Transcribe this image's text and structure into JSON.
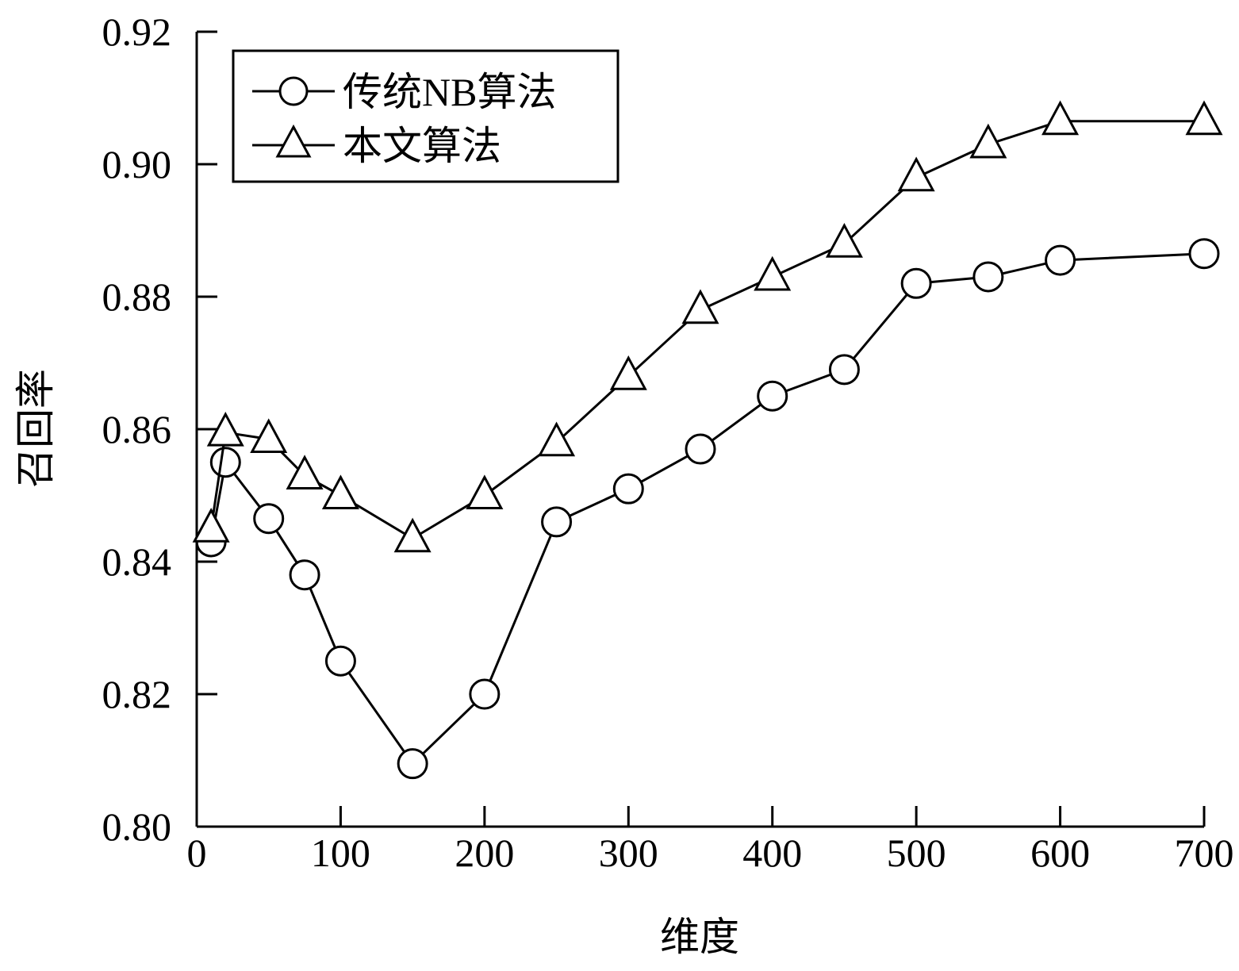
{
  "chart_data": {
    "type": "line",
    "title": "",
    "xlabel": "维度",
    "ylabel": "召回率",
    "xlim": [
      0,
      700
    ],
    "ylim": [
      0.8,
      0.92
    ],
    "xticks": [
      0,
      100,
      200,
      300,
      400,
      500,
      600,
      700
    ],
    "yticks": [
      0.8,
      0.82,
      0.84,
      0.86,
      0.88,
      0.9,
      0.92
    ],
    "xtick_labels": [
      "0",
      "100",
      "200",
      "300",
      "400",
      "500",
      "600",
      "700"
    ],
    "ytick_labels": [
      "0.80",
      "0.82",
      "0.84",
      "0.86",
      "0.88",
      "0.90",
      "0.92"
    ],
    "grid": false,
    "legend_position": "top-left",
    "series": [
      {
        "name": "传统NB算法",
        "marker": "circle",
        "color": "#000000",
        "x": [
          10,
          20,
          50,
          75,
          100,
          150,
          200,
          250,
          300,
          350,
          400,
          450,
          500,
          550,
          600,
          700
        ],
        "y": [
          0.843,
          0.855,
          0.8465,
          0.838,
          0.825,
          0.8095,
          0.82,
          0.846,
          0.851,
          0.857,
          0.865,
          0.869,
          0.882,
          0.883,
          0.8855,
          0.8865
        ]
      },
      {
        "name": "本文算法",
        "marker": "triangle",
        "color": "#000000",
        "x": [
          10,
          20,
          50,
          75,
          100,
          150,
          200,
          250,
          300,
          350,
          400,
          450,
          500,
          550,
          600,
          700
        ],
        "y": [
          0.845,
          0.8595,
          0.8585,
          0.853,
          0.85,
          0.8435,
          0.85,
          0.858,
          0.868,
          0.878,
          0.883,
          0.888,
          0.898,
          0.903,
          0.9065,
          0.9065
        ]
      }
    ]
  }
}
